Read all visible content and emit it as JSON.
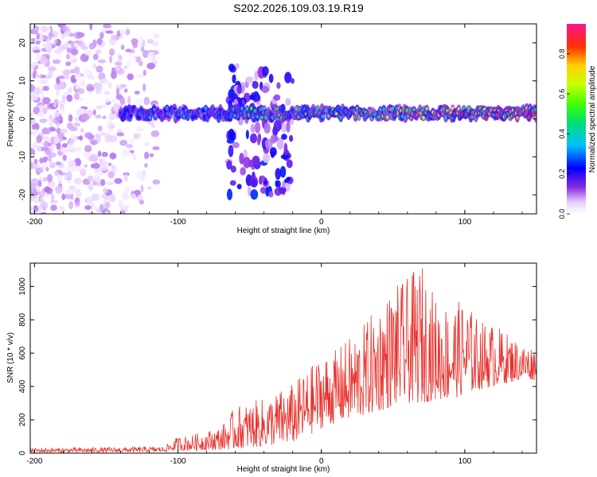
{
  "title": "S202.2026.109.03.19.R19",
  "colors": {
    "line": "#e8302b",
    "axis": "#000000",
    "background": "#ffffff"
  },
  "chart_data": [
    {
      "type": "heatmap",
      "name": "spectrogram",
      "xlabel": "Height of straight line (km)",
      "ylabel": "Frequency (Hz)",
      "xlim": [
        -203,
        150
      ],
      "ylim": [
        -25,
        25
      ],
      "xticks": [
        -200,
        -100,
        0,
        100
      ],
      "yticks": [
        20,
        10,
        0,
        -10,
        -20
      ],
      "xtick_labels": [
        "-200",
        "-100",
        "0",
        "100"
      ],
      "ytick_labels": [
        "20",
        "10",
        "0",
        "-10",
        "-20"
      ],
      "colorbar": {
        "label": "Normalized spectral amplitude",
        "range": [
          0,
          0.95
        ],
        "ticks": [
          0.0,
          0.2,
          0.4,
          0.6,
          0.8
        ],
        "tick_labels": [
          "0.0",
          "0.2",
          "0.4",
          "0.6",
          "0.8"
        ],
        "colormap": "rainbow"
      },
      "features": [
        {
          "description": "noise region",
          "x_range": [
            -203,
            -115
          ],
          "y_range": [
            -25,
            25
          ],
          "amplitude": 0.08
        },
        {
          "description": "main signal band",
          "x_range": [
            -140,
            150
          ],
          "frequency": 1.5,
          "amplitude_start": 0.3,
          "amplitude_end": 0.95
        },
        {
          "description": "scattered branch",
          "x_range": [
            -65,
            -20
          ],
          "y_range": [
            -20,
            14
          ],
          "amplitude": 0.15
        }
      ]
    },
    {
      "type": "line",
      "name": "snr",
      "xlabel": "Height of straight line (km)",
      "ylabel": "SNR (10 * v/v)",
      "xlim": [
        -203,
        150
      ],
      "ylim": [
        0,
        1140
      ],
      "xticks": [
        -200,
        -100,
        0,
        100
      ],
      "yticks": [
        0,
        200,
        400,
        600,
        800,
        1000
      ],
      "xtick_labels": [
        "-200",
        "-100",
        "0",
        "100"
      ],
      "ytick_labels": [
        "0",
        "200",
        "400",
        "600",
        "800",
        "1000"
      ],
      "series": [
        {
          "name": "SNR",
          "color": "#e8302b",
          "envelope_x": [
            -203,
            -150,
            -110,
            -100,
            -90,
            -70,
            -60,
            -40,
            -20,
            -10,
            0,
            10,
            20,
            30,
            40,
            50,
            60,
            70,
            80,
            90,
            100,
            110,
            120,
            130,
            140,
            150
          ],
          "envelope_low": [
            5,
            5,
            8,
            15,
            15,
            20,
            25,
            40,
            60,
            100,
            150,
            180,
            200,
            220,
            250,
            280,
            300,
            300,
            320,
            320,
            350,
            380,
            400,
            420,
            440,
            440
          ],
          "envelope_high": [
            30,
            35,
            40,
            100,
            110,
            160,
            280,
            330,
            420,
            500,
            590,
            620,
            700,
            780,
            900,
            1000,
            1050,
            1140,
            930,
            900,
            920,
            800,
            780,
            720,
            660,
            640
          ]
        }
      ]
    }
  ]
}
